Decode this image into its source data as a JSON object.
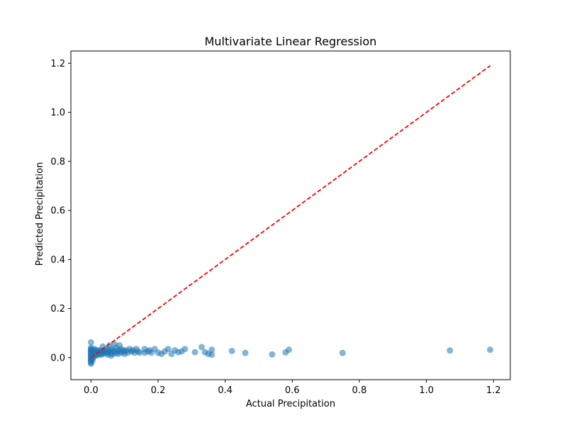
{
  "chart_data": {
    "type": "scatter",
    "title": "Multivariate Linear Regression",
    "xlabel": "Actual Precipitation",
    "ylabel": "Predicted Precipitation",
    "xlim": [
      -0.06,
      1.25
    ],
    "ylim": [
      -0.09,
      1.25
    ],
    "xticks": [
      0.0,
      0.2,
      0.4,
      0.6,
      0.8,
      1.0,
      1.2
    ],
    "yticks": [
      0.0,
      0.2,
      0.4,
      0.6,
      0.8,
      1.0,
      1.2
    ],
    "xtick_labels": [
      "0.0",
      "0.2",
      "0.4",
      "0.6",
      "0.8",
      "1.0",
      "1.2"
    ],
    "ytick_labels": [
      "0.0",
      "0.2",
      "0.4",
      "0.6",
      "0.8",
      "1.0",
      "1.2"
    ],
    "grid": false,
    "series": [
      {
        "kind": "points",
        "color": "#1f77b4",
        "opacity": 0.55,
        "points": [
          [
            0.0,
            0.062
          ],
          [
            0.0,
            0.04
          ],
          [
            0.0,
            0.035
          ],
          [
            0.0,
            0.03
          ],
          [
            0.0,
            0.025
          ],
          [
            0.0,
            0.02
          ],
          [
            0.0,
            0.015
          ],
          [
            0.0,
            0.01
          ],
          [
            0.0,
            0.005
          ],
          [
            0.0,
            0.0
          ],
          [
            0.0,
            -0.005
          ],
          [
            0.0,
            -0.01
          ],
          [
            0.0,
            -0.015
          ],
          [
            0.0,
            -0.02
          ],
          [
            0.0,
            -0.025
          ],
          [
            0.005,
            0.03
          ],
          [
            0.005,
            0.02
          ],
          [
            0.005,
            0.01
          ],
          [
            0.005,
            0.0
          ],
          [
            0.005,
            -0.01
          ],
          [
            0.01,
            0.035
          ],
          [
            0.01,
            0.025
          ],
          [
            0.01,
            0.015
          ],
          [
            0.01,
            0.005
          ],
          [
            0.015,
            0.03
          ],
          [
            0.015,
            0.02
          ],
          [
            0.015,
            0.01
          ],
          [
            0.02,
            0.03
          ],
          [
            0.02,
            0.02
          ],
          [
            0.02,
            0.01
          ],
          [
            0.025,
            0.025
          ],
          [
            0.025,
            0.015
          ],
          [
            0.03,
            0.03
          ],
          [
            0.03,
            0.02
          ],
          [
            0.03,
            0.012
          ],
          [
            0.035,
            0.045
          ],
          [
            0.035,
            0.025
          ],
          [
            0.035,
            0.015
          ],
          [
            0.04,
            0.03
          ],
          [
            0.04,
            0.02
          ],
          [
            0.045,
            0.035
          ],
          [
            0.045,
            0.02
          ],
          [
            0.05,
            0.03
          ],
          [
            0.05,
            0.02
          ],
          [
            0.05,
            0.012
          ],
          [
            0.055,
            0.05
          ],
          [
            0.055,
            0.025
          ],
          [
            0.06,
            0.035
          ],
          [
            0.06,
            0.02
          ],
          [
            0.06,
            0.008
          ],
          [
            0.065,
            0.03
          ],
          [
            0.065,
            0.015
          ],
          [
            0.07,
            0.055
          ],
          [
            0.07,
            0.025
          ],
          [
            0.075,
            0.04
          ],
          [
            0.075,
            0.02
          ],
          [
            0.08,
            0.03
          ],
          [
            0.08,
            0.015
          ],
          [
            0.085,
            0.05
          ],
          [
            0.085,
            0.025
          ],
          [
            0.09,
            0.035
          ],
          [
            0.09,
            0.02
          ],
          [
            0.095,
            0.03
          ],
          [
            0.1,
            0.025
          ],
          [
            0.1,
            0.015
          ],
          [
            0.105,
            0.03
          ],
          [
            0.11,
            0.02
          ],
          [
            0.115,
            0.035
          ],
          [
            0.12,
            0.025
          ],
          [
            0.125,
            0.03
          ],
          [
            0.13,
            0.02
          ],
          [
            0.135,
            0.035
          ],
          [
            0.14,
            0.025
          ],
          [
            0.145,
            0.02
          ],
          [
            0.16,
            0.035
          ],
          [
            0.16,
            0.02
          ],
          [
            0.17,
            0.025
          ],
          [
            0.175,
            0.03
          ],
          [
            0.18,
            0.02
          ],
          [
            0.19,
            0.035
          ],
          [
            0.2,
            0.02
          ],
          [
            0.21,
            0.015
          ],
          [
            0.22,
            0.025
          ],
          [
            0.23,
            0.035
          ],
          [
            0.24,
            0.015
          ],
          [
            0.25,
            0.03
          ],
          [
            0.26,
            0.022
          ],
          [
            0.27,
            0.025
          ],
          [
            0.28,
            0.035
          ],
          [
            0.31,
            0.022
          ],
          [
            0.33,
            0.043
          ],
          [
            0.34,
            0.022
          ],
          [
            0.35,
            0.015
          ],
          [
            0.36,
            0.032
          ],
          [
            0.36,
            0.012
          ],
          [
            0.42,
            0.027
          ],
          [
            0.46,
            0.019
          ],
          [
            0.54,
            0.013
          ],
          [
            0.58,
            0.021
          ],
          [
            0.59,
            0.032
          ],
          [
            0.75,
            0.019
          ],
          [
            1.07,
            0.029
          ],
          [
            1.19,
            0.032
          ]
        ]
      },
      {
        "kind": "reference-line",
        "color": "#ff0000",
        "dash": true,
        "points": [
          [
            0.0,
            0.0
          ],
          [
            1.19,
            1.19
          ]
        ]
      }
    ]
  }
}
